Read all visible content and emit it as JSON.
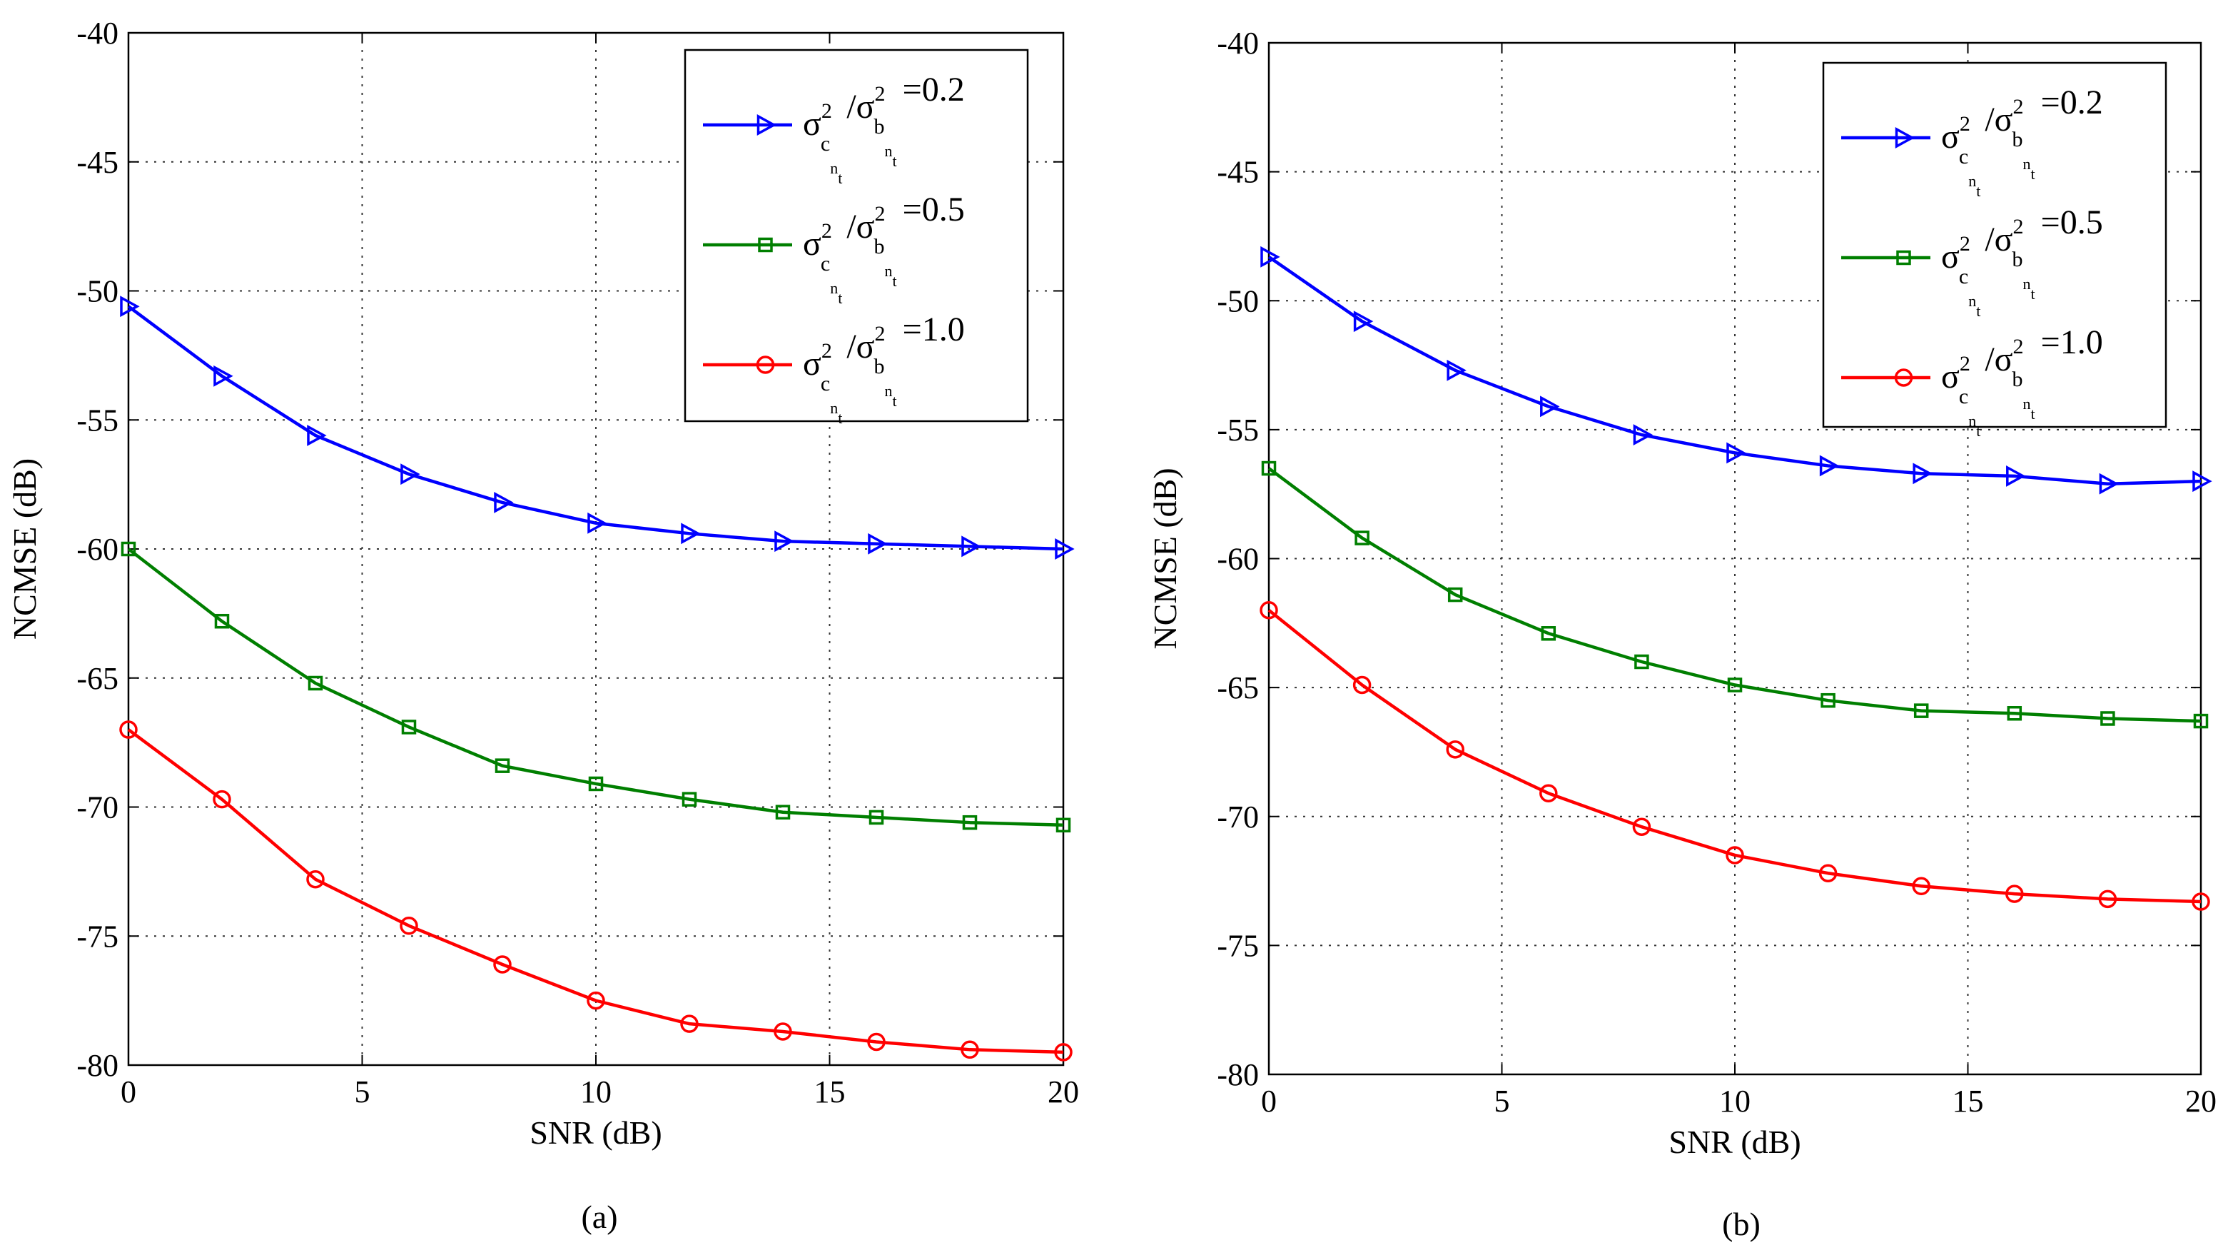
{
  "chart_data": [
    {
      "type": "line",
      "caption": "(a)",
      "xlabel": "SNR (dB)",
      "ylabel": "NCMSE (dB)",
      "xlim": [
        0,
        20
      ],
      "ylim": [
        -80,
        -40
      ],
      "xticks": [
        0,
        5,
        10,
        15,
        20
      ],
      "yticks": [
        -40,
        -45,
        -50,
        -55,
        -60,
        -65,
        -70,
        -75,
        -80
      ],
      "grid": true,
      "legend_position": "top-right",
      "x": [
        0,
        2,
        4,
        6,
        8,
        10,
        12,
        14,
        16,
        18,
        20
      ],
      "series": [
        {
          "name": "σ²c/σ²b =0.2",
          "legend": {
            "sym": "σ",
            "num_sub": "c",
            "num_subsub": "n",
            "num_subsubsub": "t",
            "sup": "2",
            "den_sub": "b",
            "den_subsub": "n",
            "den_subsubsub": "t",
            "slash": "/",
            "value": "=0.2"
          },
          "color": "#0000ff",
          "marker": "triangle-right",
          "values": [
            -50.6,
            -53.3,
            -55.6,
            -57.1,
            -58.2,
            -59.0,
            -59.4,
            -59.7,
            -59.8,
            -59.9,
            -60.0
          ]
        },
        {
          "name": "σ²c/σ²b =0.5",
          "legend": {
            "sym": "σ",
            "num_sub": "c",
            "num_subsub": "n",
            "num_subsubsub": "t",
            "sup": "2",
            "den_sub": "b",
            "den_subsub": "n",
            "den_subsubsub": "t",
            "slash": "/",
            "value": "=0.5"
          },
          "color": "#007f00",
          "marker": "square",
          "values": [
            -60.0,
            -62.8,
            -65.2,
            -66.9,
            -68.4,
            -69.1,
            -69.7,
            -70.2,
            -70.4,
            -70.6,
            -70.7
          ]
        },
        {
          "name": "σ²c/σ²b =1.0",
          "legend": {
            "sym": "σ",
            "num_sub": "c",
            "num_subsub": "n",
            "num_subsubsub": "t",
            "sup": "2",
            "den_sub": "b",
            "den_subsub": "n",
            "den_subsubsub": "t",
            "slash": "/",
            "value": "=1.0"
          },
          "color": "#ff0000",
          "marker": "circle",
          "values": [
            -67.0,
            -69.7,
            -72.8,
            -74.6,
            -76.1,
            -77.5,
            -78.4,
            -78.7,
            -79.1,
            -79.4,
            -79.5
          ]
        }
      ]
    },
    {
      "type": "line",
      "caption": "(b)",
      "xlabel": "SNR (dB)",
      "ylabel": "NCMSE (dB)",
      "xlim": [
        0,
        20
      ],
      "ylim": [
        -80,
        -40
      ],
      "xticks": [
        0,
        5,
        10,
        15,
        20
      ],
      "yticks": [
        -40,
        -45,
        -50,
        -55,
        -60,
        -65,
        -70,
        -75,
        -80
      ],
      "grid": true,
      "legend_position": "top-right",
      "x": [
        0,
        2,
        4,
        6,
        8,
        10,
        12,
        14,
        16,
        18,
        20
      ],
      "series": [
        {
          "name": "σ²c/σ²b =0.2",
          "legend": {
            "sym": "σ",
            "num_sub": "c",
            "num_subsub": "n",
            "num_subsubsub": "t",
            "sup": "2",
            "den_sub": "b",
            "den_subsub": "n",
            "den_subsubsub": "t",
            "slash": "/",
            "value": "=0.2"
          },
          "color": "#0000ff",
          "marker": "triangle-right",
          "values": [
            -48.3,
            -50.8,
            -52.7,
            -54.1,
            -55.2,
            -55.9,
            -56.4,
            -56.7,
            -56.8,
            -57.1,
            -57.0
          ]
        },
        {
          "name": "σ²c/σ²b =0.5",
          "legend": {
            "sym": "σ",
            "num_sub": "c",
            "num_subsub": "n",
            "num_subsubsub": "t",
            "sup": "2",
            "den_sub": "b",
            "den_subsub": "n",
            "den_subsubsub": "t",
            "slash": "/",
            "value": "=0.5"
          },
          "color": "#007f00",
          "marker": "square",
          "values": [
            -56.5,
            -59.2,
            -61.4,
            -62.9,
            -64.0,
            -64.9,
            -65.5,
            -65.9,
            -66.0,
            -66.2,
            -66.3
          ]
        },
        {
          "name": "σ²c/σ²b =1.0",
          "legend": {
            "sym": "σ",
            "num_sub": "c",
            "num_subsub": "n",
            "num_subsubsub": "t",
            "sup": "2",
            "den_sub": "b",
            "den_subsub": "n",
            "den_subsubsub": "t",
            "slash": "/",
            "value": "=1.0"
          },
          "color": "#ff0000",
          "marker": "circle",
          "values": [
            -62.0,
            -64.9,
            -67.4,
            -69.1,
            -70.4,
            -71.5,
            -72.2,
            -72.7,
            -73.0,
            -73.2,
            -73.3
          ]
        }
      ]
    }
  ]
}
